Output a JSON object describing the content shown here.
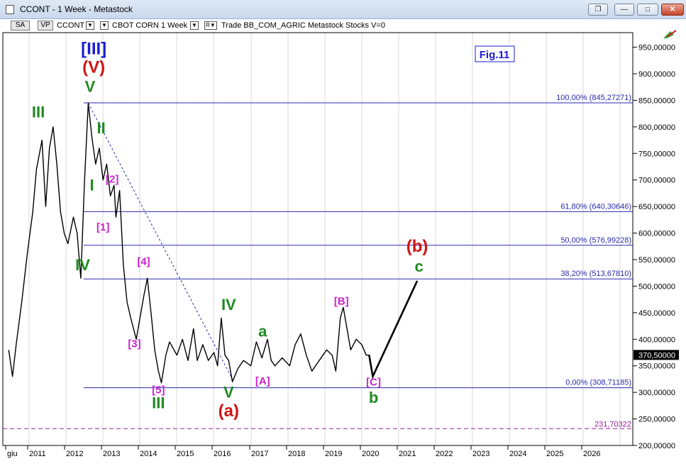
{
  "window": {
    "title": "CCONT - 1 Week - Metastock",
    "minimize_icon": "minimize-icon",
    "maximize_icon": "maximize-icon",
    "close_icon": "close-icon",
    "restore_icon": "restore-icon"
  },
  "toolbar": {
    "sa_label": "SA",
    "vp_label": "VP",
    "symbol": "CCONT",
    "description": "CBOT CORN",
    "period": "1 Week",
    "tail": "Trade  BB_COM_AGRIC  Metastock  Stocks  V=0"
  },
  "chart_data": {
    "type": "line",
    "title": "Fig.11",
    "y_axis": {
      "position": "right",
      "min": 200,
      "max": 950,
      "ticks": [
        "200,00000",
        "250,00000",
        "300,00000",
        "350,00000",
        "400,00000",
        "450,00000",
        "500,00000",
        "550,00000",
        "600,00000",
        "650,00000",
        "700,00000",
        "750,00000",
        "800,00000",
        "850,00000",
        "900,00000",
        "950,00000"
      ]
    },
    "x_axis": {
      "ticks": [
        "giu",
        "2011",
        "2012",
        "2013",
        "2014",
        "2015",
        "2016",
        "2017",
        "2018",
        "2019",
        "2020",
        "2021",
        "2022",
        "2023",
        "2024",
        "2025",
        "2026"
      ]
    },
    "last_price_label": "370,50000",
    "price_series": [
      [
        2010.45,
        380
      ],
      [
        2010.55,
        330
      ],
      [
        2010.65,
        390
      ],
      [
        2010.8,
        470
      ],
      [
        2010.95,
        560
      ],
      [
        2011.1,
        640
      ],
      [
        2011.2,
        720
      ],
      [
        2011.35,
        775
      ],
      [
        2011.45,
        650
      ],
      [
        2011.55,
        760
      ],
      [
        2011.65,
        800
      ],
      [
        2011.75,
        730
      ],
      [
        2011.85,
        640
      ],
      [
        2011.95,
        600
      ],
      [
        2012.05,
        580
      ],
      [
        2012.2,
        630
      ],
      [
        2012.3,
        600
      ],
      [
        2012.4,
        515
      ],
      [
        2012.5,
        700
      ],
      [
        2012.6,
        845
      ],
      [
        2012.7,
        780
      ],
      [
        2012.8,
        730
      ],
      [
        2012.9,
        760
      ],
      [
        2013.0,
        700
      ],
      [
        2013.1,
        730
      ],
      [
        2013.2,
        670
      ],
      [
        2013.3,
        690
      ],
      [
        2013.35,
        630
      ],
      [
        2013.45,
        680
      ],
      [
        2013.55,
        540
      ],
      [
        2013.65,
        470
      ],
      [
        2013.75,
        440
      ],
      [
        2013.9,
        400
      ],
      [
        2014.0,
        440
      ],
      [
        2014.1,
        480
      ],
      [
        2014.2,
        515
      ],
      [
        2014.3,
        450
      ],
      [
        2014.4,
        380
      ],
      [
        2014.5,
        340
      ],
      [
        2014.58,
        318
      ],
      [
        2014.7,
        370
      ],
      [
        2014.8,
        395
      ],
      [
        2015.0,
        370
      ],
      [
        2015.15,
        400
      ],
      [
        2015.3,
        360
      ],
      [
        2015.45,
        420
      ],
      [
        2015.55,
        360
      ],
      [
        2015.7,
        390
      ],
      [
        2015.85,
        360
      ],
      [
        2016.0,
        375
      ],
      [
        2016.1,
        350
      ],
      [
        2016.2,
        440
      ],
      [
        2016.3,
        370
      ],
      [
        2016.4,
        360
      ],
      [
        2016.5,
        320
      ],
      [
        2016.65,
        345
      ],
      [
        2016.8,
        360
      ],
      [
        2017.0,
        350
      ],
      [
        2017.15,
        395
      ],
      [
        2017.3,
        365
      ],
      [
        2017.45,
        400
      ],
      [
        2017.55,
        360
      ],
      [
        2017.65,
        350
      ],
      [
        2017.85,
        365
      ],
      [
        2018.05,
        350
      ],
      [
        2018.2,
        390
      ],
      [
        2018.35,
        410
      ],
      [
        2018.5,
        370
      ],
      [
        2018.65,
        340
      ],
      [
        2018.85,
        360
      ],
      [
        2019.05,
        380
      ],
      [
        2019.2,
        370
      ],
      [
        2019.3,
        340
      ],
      [
        2019.42,
        440
      ],
      [
        2019.5,
        460
      ],
      [
        2019.6,
        420
      ],
      [
        2019.7,
        380
      ],
      [
        2019.85,
        400
      ],
      [
        2020.0,
        390
      ],
      [
        2020.12,
        370
      ],
      [
        2020.2,
        370.5
      ]
    ],
    "projection": [
      [
        2020.2,
        370.5
      ],
      [
        2020.3,
        330
      ],
      [
        2021.5,
        510
      ]
    ],
    "fib_levels": [
      {
        "label": "100,00% (845,27271)",
        "value": 845.27
      },
      {
        "label": "61,80% (640,30646)",
        "value": 640.31
      },
      {
        "label": "50,00% (576,99228)",
        "value": 576.99
      },
      {
        "label": "38,20% (513,67810)",
        "value": 513.68
      },
      {
        "label": "0,00% (308,71185)",
        "value": 308.71
      }
    ],
    "dashed_level": {
      "label": "231,70322",
      "value": 231.7
    },
    "trendline": [
      [
        2012.6,
        845
      ],
      [
        2016.5,
        325
      ]
    ],
    "wave_labels": [
      {
        "text": "[III]",
        "color": "#1a1ad6",
        "x": 2012.75,
        "y": 937
      },
      {
        "text": "(V)",
        "color": "#d01414",
        "x": 2012.75,
        "y": 902
      },
      {
        "text": "V",
        "color": "#1f8a1f",
        "x": 2012.65,
        "y": 866
      },
      {
        "text": "III",
        "color": "#1f8a1f",
        "x": 2011.25,
        "y": 818
      },
      {
        "text": "II",
        "color": "#1f8a1f",
        "x": 2012.95,
        "y": 788
      },
      {
        "text": "I",
        "color": "#1f8a1f",
        "x": 2012.7,
        "y": 680
      },
      {
        "text": "IV",
        "color": "#1f8a1f",
        "x": 2012.45,
        "y": 530
      },
      {
        "text": "[2]",
        "color": "#cc22cc",
        "x": 2013.25,
        "y": 695
      },
      {
        "text": "[1]",
        "color": "#cc22cc",
        "x": 2013.0,
        "y": 605
      },
      {
        "text": "[4]",
        "color": "#cc22cc",
        "x": 2014.1,
        "y": 540
      },
      {
        "text": "[3]",
        "color": "#cc22cc",
        "x": 2013.85,
        "y": 385
      },
      {
        "text": "[5]",
        "color": "#cc22cc",
        "x": 2014.5,
        "y": 298
      },
      {
        "text": "III",
        "color": "#1f8a1f",
        "x": 2014.5,
        "y": 270
      },
      {
        "text": "IV",
        "color": "#1f8a1f",
        "x": 2016.4,
        "y": 455
      },
      {
        "text": "V",
        "color": "#1f8a1f",
        "x": 2016.4,
        "y": 290
      },
      {
        "text": "(a)",
        "color": "#d01414",
        "x": 2016.4,
        "y": 255
      },
      {
        "text": "a",
        "color": "#1f8a1f",
        "x": 2017.32,
        "y": 405
      },
      {
        "text": "[A]",
        "color": "#cc22cc",
        "x": 2017.32,
        "y": 315
      },
      {
        "text": "[B]",
        "color": "#cc22cc",
        "x": 2019.45,
        "y": 465
      },
      {
        "text": "[C]",
        "color": "#cc22cc",
        "x": 2020.32,
        "y": 313
      },
      {
        "text": "b",
        "color": "#1f8a1f",
        "x": 2020.32,
        "y": 280
      },
      {
        "text": "(b)",
        "color": "#d01414",
        "x": 2021.5,
        "y": 565
      },
      {
        "text": "c",
        "color": "#1f8a1f",
        "x": 2021.55,
        "y": 527
      }
    ]
  }
}
